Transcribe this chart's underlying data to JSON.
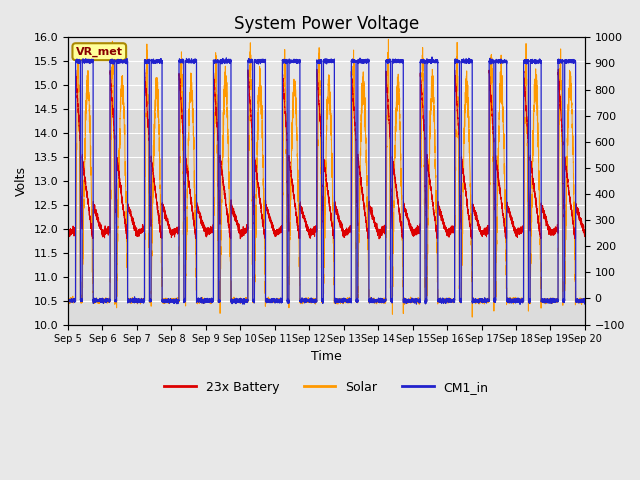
{
  "title": "System Power Voltage",
  "xlabel": "Time",
  "ylabel_left": "Volts",
  "ylim_left": [
    10.0,
    16.0
  ],
  "ylim_right": [
    -100,
    1000
  ],
  "yticks_left": [
    10.0,
    10.5,
    11.0,
    11.5,
    12.0,
    12.5,
    13.0,
    13.5,
    14.0,
    14.5,
    15.0,
    15.5,
    16.0
  ],
  "yticks_right": [
    -100,
    0,
    100,
    200,
    300,
    400,
    500,
    600,
    700,
    800,
    900,
    1000
  ],
  "xtick_labels": [
    "Sep 5",
    "Sep 6",
    "Sep 7",
    "Sep 8",
    "Sep 9",
    "Sep 10",
    "Sep 11",
    "Sep 12",
    "Sep 13",
    "Sep 14",
    "Sep 15",
    "Sep 16",
    "Sep 17",
    "Sep 18",
    "Sep 19",
    "Sep 20"
  ],
  "annotation_text": "VR_met",
  "line_colors_battery": "#dd0000",
  "line_colors_solar": "#ff9900",
  "line_colors_cm1": "#2222cc",
  "background_color": "#e8e8e8",
  "plot_bg_color": "#dcdcdc",
  "title_fontsize": 12,
  "axis_fontsize": 9,
  "tick_fontsize": 8,
  "num_days": 15,
  "seed": 42
}
